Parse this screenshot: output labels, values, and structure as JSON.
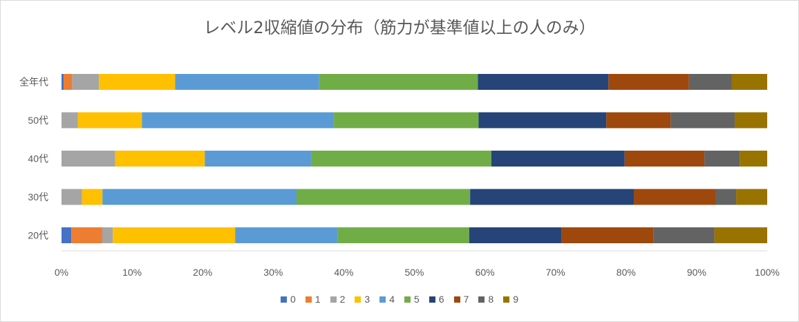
{
  "chart_data": {
    "type": "bar",
    "orientation": "horizontal",
    "stacked": "percent",
    "title": "レベル2収縮値の分布（筋力が基準値以上の人のみ）",
    "categories": [
      "全年代",
      "50代",
      "40代",
      "30代",
      "20代"
    ],
    "xlim": [
      0,
      100
    ],
    "xticks": [
      "0%",
      "10%",
      "20%",
      "30%",
      "40%",
      "50%",
      "60%",
      "70%",
      "80%",
      "90%",
      "100%"
    ],
    "grid": false,
    "legend_position": "bottom",
    "series": [
      {
        "name": "0",
        "color": "#4472C4",
        "values": [
          0.3,
          0,
          0,
          0,
          1.4
        ]
      },
      {
        "name": "1",
        "color": "#ED7D31",
        "values": [
          1.2,
          0,
          0,
          0,
          4.4
        ]
      },
      {
        "name": "2",
        "color": "#A5A5A5",
        "values": [
          3.8,
          2.3,
          7.6,
          2.9,
          1.5
        ]
      },
      {
        "name": "3",
        "color": "#FFC000",
        "values": [
          10.8,
          9.1,
          12.7,
          2.9,
          17.4
        ]
      },
      {
        "name": "4",
        "color": "#5B9BD5",
        "values": [
          20.4,
          27.2,
          15.1,
          27.5,
          14.6
        ]
      },
      {
        "name": "5",
        "color": "#70AD47",
        "values": [
          22.5,
          20.5,
          25.5,
          24.6,
          18.7
        ]
      },
      {
        "name": "6",
        "color": "#264478",
        "values": [
          18.5,
          18.1,
          18.9,
          23.2,
          13.1
        ]
      },
      {
        "name": "7",
        "color": "#9E480E",
        "values": [
          11.4,
          9.1,
          11.3,
          11.6,
          13.1
        ]
      },
      {
        "name": "8",
        "color": "#636363",
        "values": [
          6.1,
          9.1,
          5.0,
          2.9,
          8.7
        ]
      },
      {
        "name": "9",
        "color": "#997300",
        "values": [
          5.0,
          4.6,
          3.9,
          4.4,
          7.5
        ]
      }
    ]
  }
}
